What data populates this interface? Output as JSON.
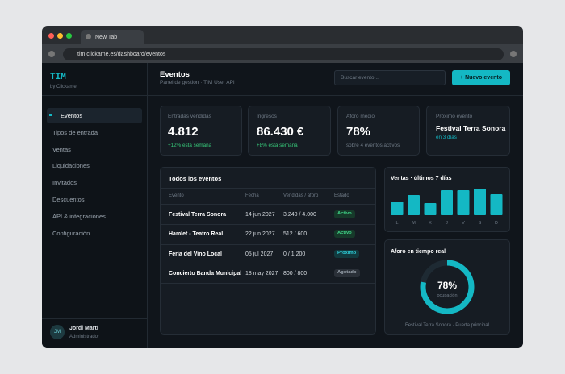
{
  "browser": {
    "tab": "New Tab",
    "url": "tim.clickame.es/dashboard/eventos"
  },
  "sidebar": {
    "logo": "TIM",
    "tagline": "by Clickame",
    "nav": [
      "Eventos",
      "Tipos de entrada",
      "Ventas",
      "Liquidaciones",
      "Invitados",
      "Descuentos",
      "API & integraciones",
      "Configuración"
    ],
    "user": {
      "initials": "JM",
      "name": "Jordi Martí",
      "role": "Administrador"
    }
  },
  "header": {
    "title": "Eventos",
    "subtitle": "Panel de gestión · TIM User API",
    "search_placeholder": "Buscar evento...",
    "button": "+ Nuevo evento"
  },
  "kpis": [
    {
      "label": "Entradas vendidas",
      "value": "4.812",
      "note": "+12% esta semana"
    },
    {
      "label": "Ingresos",
      "value": "86.430 €",
      "note": "+8% esta semana"
    },
    {
      "label": "Aforo medio",
      "value": "78%",
      "note": "sobre 4 eventos activos"
    },
    {
      "label": "Próximo evento",
      "value": "Festival Terra Sonora",
      "note": "en 3 días"
    }
  ],
  "table": {
    "title": "Todos los eventos",
    "columns": [
      "Evento",
      "Fecha",
      "Vendidas / aforo",
      "Estado"
    ],
    "rows": [
      [
        "Festival Terra Sonora",
        "14 jun 2027",
        "3.240 / 4.000",
        "Activo"
      ],
      [
        "Hamlet - Teatro Real",
        "22 jun 2027",
        "512 / 600",
        "Activo"
      ],
      [
        "Feria del Vino Local",
        "05 jul 2027",
        "0 / 1.200",
        "Próximo"
      ],
      [
        "Concierto Banda Municipal",
        "18 may 2027",
        "800 / 800",
        "Agotado"
      ]
    ]
  },
  "sales": {
    "title": "Ventas · últimos 7 días",
    "days": [
      "L",
      "M",
      "X",
      "J",
      "V",
      "S",
      "D"
    ],
    "values": [
      17,
      25,
      15,
      31,
      31,
      33,
      26
    ],
    "color": "#14b8c4"
  },
  "occupancy": {
    "title": "Aforo en tiempo real",
    "value": {
      "value": 78,
      "label": "78%"
    },
    "caption": "ocupación",
    "footer": "Festival Terra Sonora · Puerta principal",
    "color": "#14b8c4"
  }
}
